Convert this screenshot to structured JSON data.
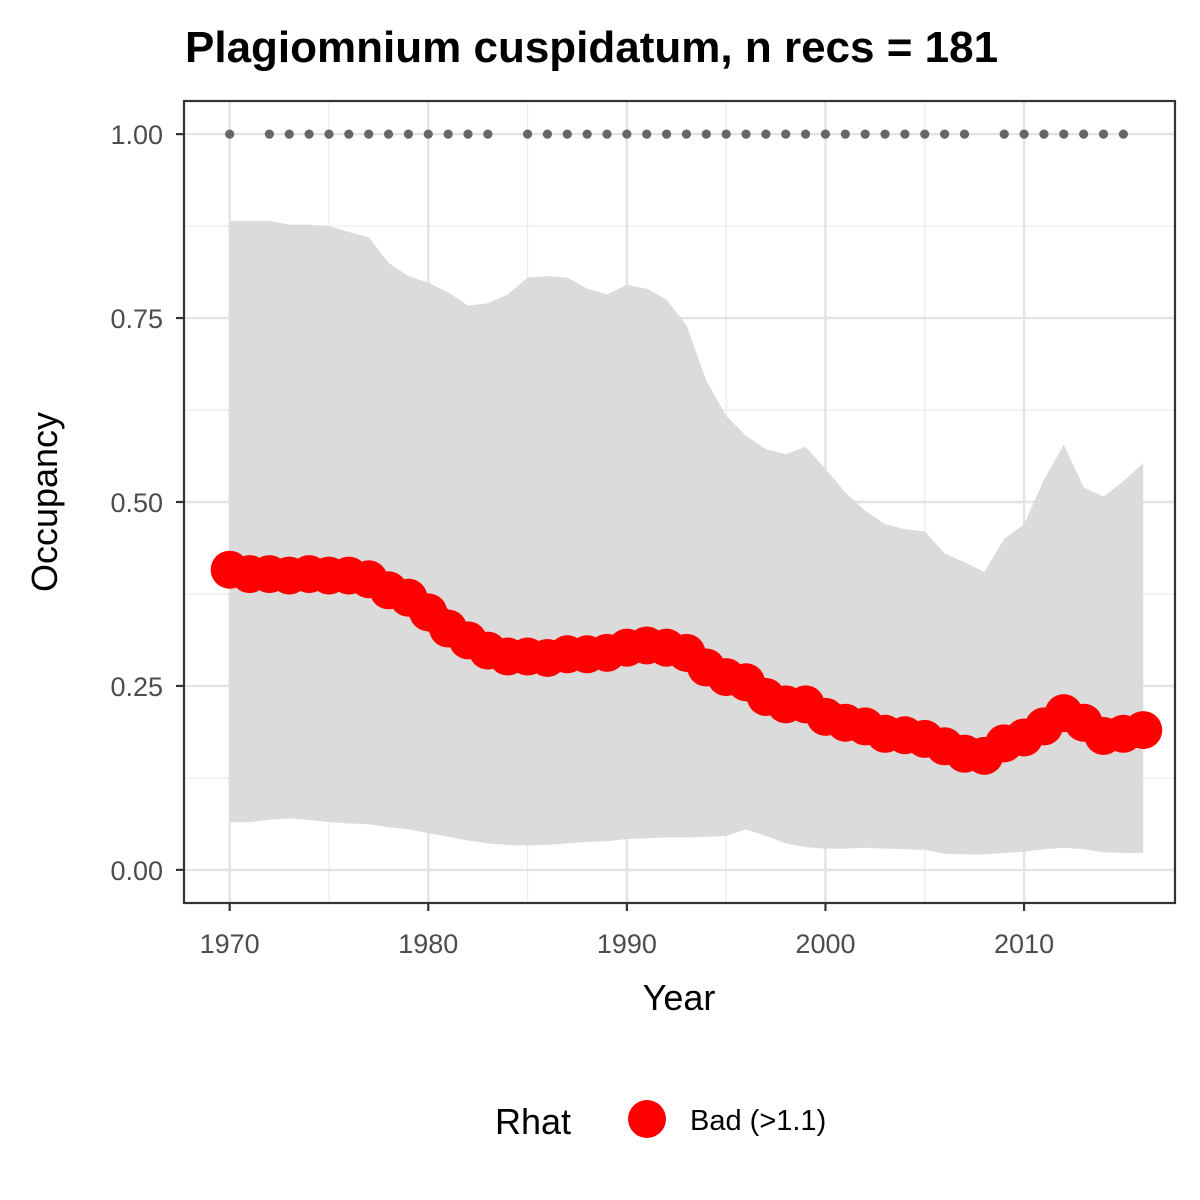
{
  "chart_data": {
    "type": "line",
    "title": "Plagiomnium cuspidatum, n recs = 181",
    "xlabel": "Year",
    "ylabel": "Occupancy",
    "xlim": [
      1967.7,
      2017.6
    ],
    "ylim": [
      -0.045,
      1.045
    ],
    "x_ticks": [
      1970,
      1980,
      1990,
      2000,
      2010
    ],
    "x_tick_labels": [
      "1970",
      "1980",
      "1990",
      "2000",
      "2010"
    ],
    "y_ticks": [
      0,
      0.25,
      0.5,
      0.75,
      1
    ],
    "y_tick_labels": [
      "0.00",
      "0.25",
      "0.50",
      "0.75",
      "1.00"
    ],
    "grid": true,
    "legend": {
      "title": "Rhat",
      "position": "bottom",
      "entries": [
        {
          "label": "Bad (>1.1)",
          "color": "#ff0000"
        }
      ]
    },
    "colors": {
      "line_points": "#ff0000",
      "ribbon": "#d9d9d9",
      "record_dots": "#666666"
    },
    "series": [
      {
        "name": "Bad (>1.1)",
        "x": [
          1970,
          1971,
          1972,
          1973,
          1974,
          1975,
          1976,
          1977,
          1978,
          1979,
          1980,
          1981,
          1982,
          1983,
          1984,
          1985,
          1986,
          1987,
          1988,
          1989,
          1990,
          1991,
          1992,
          1993,
          1994,
          1995,
          1996,
          1997,
          1998,
          1999,
          2000,
          2001,
          2002,
          2003,
          2004,
          2005,
          2006,
          2007,
          2008,
          2009,
          2010,
          2011,
          2012,
          2013,
          2014,
          2015,
          2016
        ],
        "y": [
          0.408,
          0.402,
          0.402,
          0.4,
          0.402,
          0.4,
          0.4,
          0.395,
          0.38,
          0.37,
          0.35,
          0.328,
          0.312,
          0.298,
          0.29,
          0.29,
          0.288,
          0.293,
          0.293,
          0.295,
          0.302,
          0.305,
          0.302,
          0.295,
          0.275,
          0.262,
          0.255,
          0.235,
          0.225,
          0.225,
          0.208,
          0.2,
          0.195,
          0.185,
          0.183,
          0.178,
          0.168,
          0.158,
          0.155,
          0.172,
          0.18,
          0.195,
          0.213,
          0.2,
          0.182,
          0.185,
          0.19
        ]
      }
    ],
    "ribbon": {
      "x": [
        1970,
        1971,
        1972,
        1973,
        1974,
        1975,
        1976,
        1977,
        1978,
        1979,
        1980,
        1981,
        1982,
        1983,
        1984,
        1985,
        1986,
        1987,
        1988,
        1989,
        1990,
        1991,
        1992,
        1993,
        1994,
        1995,
        1996,
        1997,
        1998,
        1999,
        2000,
        2001,
        2002,
        2003,
        2004,
        2005,
        2006,
        2007,
        2008,
        2009,
        2010,
        2011,
        2012,
        2013,
        2014,
        2015,
        2016
      ],
      "upper": [
        0.882,
        0.882,
        0.882,
        0.877,
        0.877,
        0.875,
        0.867,
        0.86,
        0.825,
        0.807,
        0.798,
        0.785,
        0.767,
        0.77,
        0.782,
        0.805,
        0.807,
        0.805,
        0.79,
        0.782,
        0.795,
        0.79,
        0.775,
        0.74,
        0.665,
        0.617,
        0.59,
        0.572,
        0.565,
        0.575,
        0.545,
        0.513,
        0.488,
        0.47,
        0.463,
        0.46,
        0.43,
        0.418,
        0.405,
        0.45,
        0.47,
        0.53,
        0.578,
        0.52,
        0.507,
        0.528,
        0.553
      ],
      "lower": [
        0.065,
        0.065,
        0.068,
        0.07,
        0.068,
        0.065,
        0.063,
        0.062,
        0.058,
        0.055,
        0.05,
        0.045,
        0.04,
        0.036,
        0.034,
        0.033,
        0.034,
        0.036,
        0.038,
        0.039,
        0.042,
        0.043,
        0.044,
        0.044,
        0.045,
        0.046,
        0.055,
        0.046,
        0.036,
        0.031,
        0.029,
        0.029,
        0.03,
        0.029,
        0.028,
        0.027,
        0.022,
        0.021,
        0.021,
        0.023,
        0.025,
        0.028,
        0.03,
        0.028,
        0.024,
        0.023,
        0.023
      ]
    },
    "record_years": [
      1970,
      1972,
      1973,
      1974,
      1975,
      1976,
      1977,
      1978,
      1979,
      1980,
      1981,
      1982,
      1983,
      1985,
      1986,
      1987,
      1988,
      1989,
      1990,
      1991,
      1992,
      1993,
      1994,
      1995,
      1996,
      1997,
      1998,
      1999,
      2000,
      2001,
      2002,
      2003,
      2004,
      2005,
      2006,
      2007,
      2009,
      2010,
      2011,
      2012,
      2013,
      2014,
      2015
    ],
    "record_y": 1.0
  }
}
